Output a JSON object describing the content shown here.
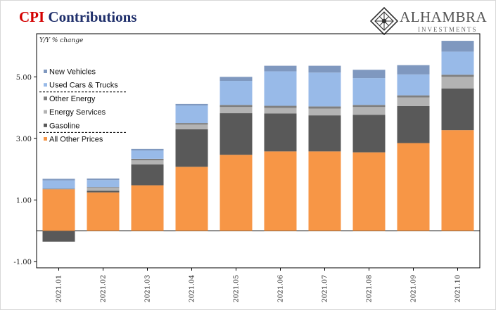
{
  "title": {
    "part1": "CPI",
    "part2": "Contributions"
  },
  "logo": {
    "name": "ALHAMBRA",
    "sub": "INVESTMENTS"
  },
  "colors": {
    "New Vehicles": "#7f98bf",
    "Used Cars & Trucks": "#98bae8",
    "Other Energy": "#7f7f7f",
    "Energy Services": "#b3b3b3",
    "Gasoline": "#595959",
    "All Other Prices": "#f79646"
  },
  "chart_data": {
    "type": "bar",
    "stacked": true,
    "ylabel": "Y/Y % change",
    "ylim": [
      -1.2,
      6.4
    ],
    "yticks": [
      5.0,
      3.0,
      1.0,
      -1.0
    ],
    "ytick_labels": [
      "5.00",
      "3.00",
      "1.00",
      "-1.00"
    ],
    "categories": [
      "2021.01",
      "2021.02",
      "2021.03",
      "2021.04",
      "2021.05",
      "2021.06",
      "2021.07",
      "2021.08",
      "2021.09",
      "2021.10"
    ],
    "series": [
      {
        "name": "All Other Prices",
        "values": [
          1.35,
          1.25,
          1.48,
          2.08,
          2.47,
          2.58,
          2.58,
          2.55,
          2.85,
          3.27
        ]
      },
      {
        "name": "Gasoline",
        "values": [
          -0.35,
          0.05,
          0.68,
          1.22,
          1.35,
          1.23,
          1.17,
          1.22,
          1.2,
          1.35
        ]
      },
      {
        "name": "Energy Services",
        "values": [
          0.0,
          0.1,
          0.13,
          0.15,
          0.2,
          0.18,
          0.22,
          0.25,
          0.28,
          0.38
        ]
      },
      {
        "name": "Other Energy",
        "values": [
          0.02,
          0.02,
          0.05,
          0.05,
          0.07,
          0.07,
          0.07,
          0.07,
          0.07,
          0.07
        ]
      },
      {
        "name": "Used Cars & Trucks",
        "values": [
          0.27,
          0.23,
          0.27,
          0.57,
          0.78,
          1.12,
          1.1,
          0.87,
          0.68,
          0.75
        ]
      },
      {
        "name": "New Vehicles",
        "values": [
          0.05,
          0.05,
          0.05,
          0.05,
          0.13,
          0.18,
          0.22,
          0.27,
          0.3,
          0.35
        ]
      }
    ],
    "legend": {
      "position": "top-left",
      "order": [
        "New Vehicles",
        "Used Cars & Trucks",
        "Other Energy",
        "Energy Services",
        "Gasoline",
        "All Other Prices"
      ]
    }
  }
}
